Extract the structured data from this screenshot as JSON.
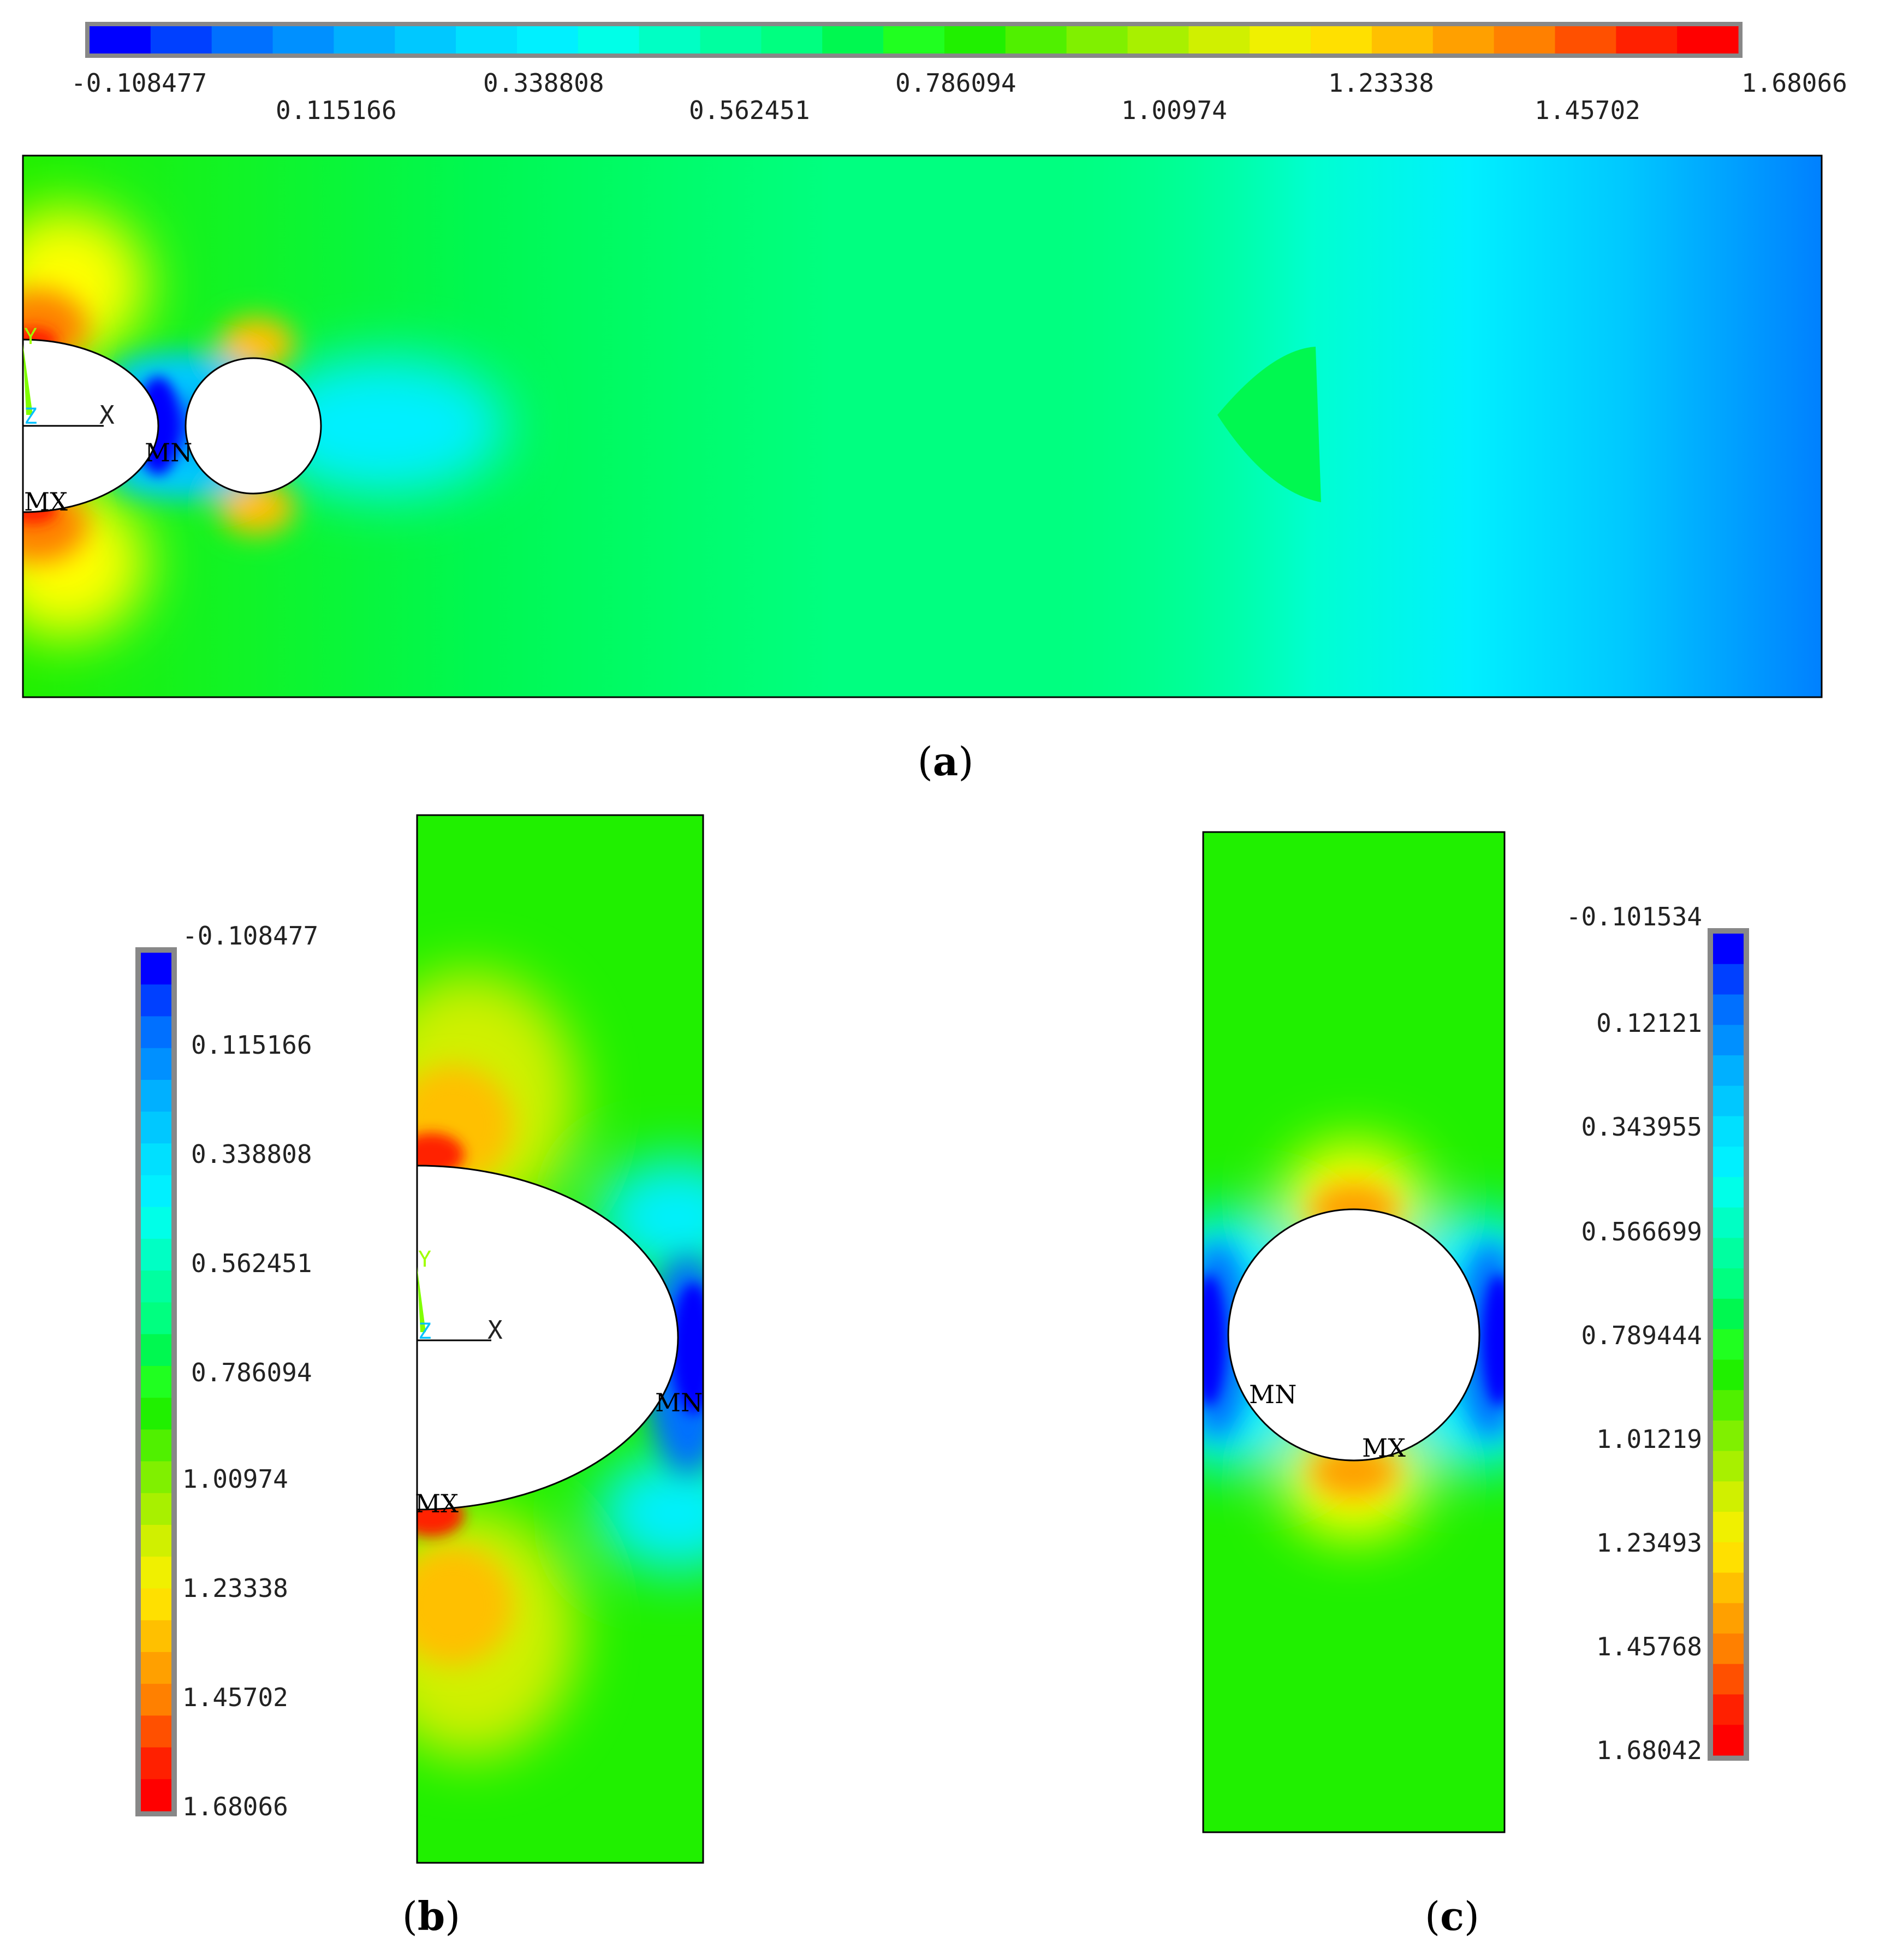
{
  "colormap": [
    "#0000ff",
    "#0040ff",
    "#0070ff",
    "#0090ff",
    "#00b0ff",
    "#00c8ff",
    "#00e0ff",
    "#00f0ff",
    "#00ffe8",
    "#00ffc4",
    "#00ffa0",
    "#00ff80",
    "#00f850",
    "#20ff20",
    "#20f000",
    "#50f000",
    "#80f000",
    "#a8f000",
    "#d0f000",
    "#f0f000",
    "#ffe000",
    "#ffc000",
    "#ffa000",
    "#ff8000",
    "#ff5000",
    "#ff2000",
    "#ff0000"
  ],
  "panels": [
    {
      "caption": "a",
      "scale_labels": [
        "-0.108477",
        "0.115166",
        "0.338808",
        "0.562451",
        "0.786094",
        "1.00974",
        "1.23338",
        "1.45702",
        "1.68066"
      ],
      "markers": [
        "MN",
        "MX"
      ],
      "triad": [
        "Y",
        "Z",
        "X"
      ]
    },
    {
      "caption": "b",
      "scale_labels": [
        "-0.108477",
        "0.115166",
        "0.338808",
        "0.562451",
        "0.786094",
        "1.00974",
        "1.23338",
        "1.45702",
        "1.68066"
      ],
      "markers": [
        "MN",
        "MX"
      ],
      "triad": [
        "Y",
        "Z",
        "X"
      ]
    },
    {
      "caption": "c",
      "scale_labels": [
        "-0.101534",
        "0.12121",
        "0.343955",
        "0.566699",
        "0.789444",
        "1.01219",
        "1.23493",
        "1.45768",
        "1.68042"
      ],
      "markers": [
        "MN",
        "MX"
      ]
    }
  ]
}
